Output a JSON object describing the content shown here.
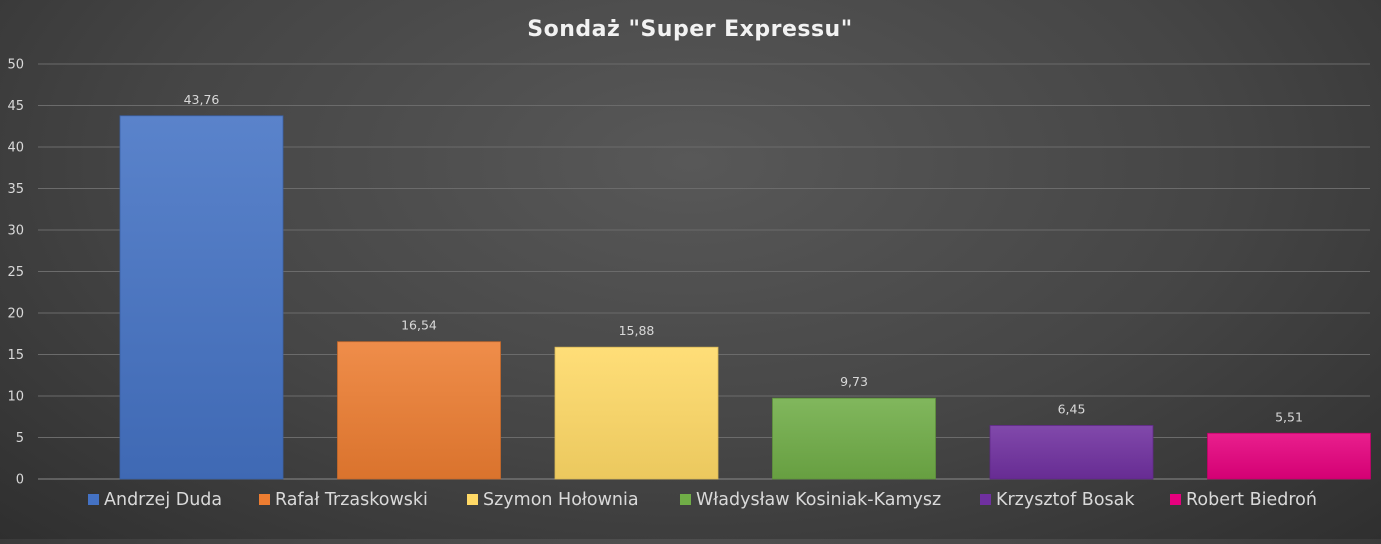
{
  "chart_data": {
    "type": "bar",
    "title": "Sondaż \"Super Expressu\"",
    "xlabel": "",
    "ylabel": "",
    "ylim": [
      0,
      50
    ],
    "yticks": [
      0,
      5,
      10,
      15,
      20,
      25,
      30,
      35,
      40,
      45,
      50
    ],
    "grid": true,
    "legend_position": "bottom",
    "categories": [
      "Andrzej Duda",
      "Rafał Trzaskowski",
      "Szymon Hołownia",
      "Władysław Kosiniak-Kamysz",
      "Krzysztof Bosak",
      "Robert Biedroń"
    ],
    "values": [
      43.76,
      16.54,
      15.88,
      9.73,
      6.45,
      5.51
    ],
    "data_labels": [
      "43,76",
      "16,54",
      "15,88",
      "9,73",
      "6,45",
      "5,51"
    ],
    "colors": [
      "#4472c4",
      "#ed7d31",
      "#ffd966",
      "#70ad47",
      "#7030a0",
      "#e6007e"
    ]
  }
}
